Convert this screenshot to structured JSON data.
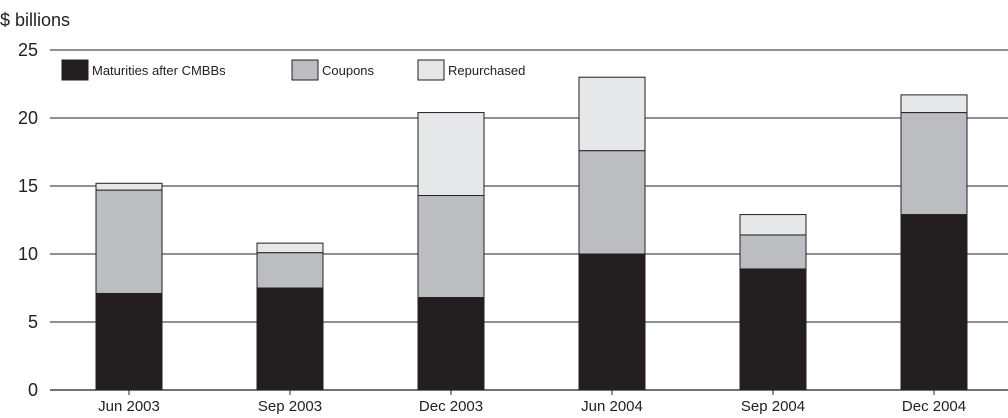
{
  "chart_data": {
    "type": "bar",
    "stacked": true,
    "ylabel": "$ billions",
    "ylim": [
      0,
      25
    ],
    "yticks": [
      0,
      5,
      10,
      15,
      20,
      25
    ],
    "grid": true,
    "legend_position": "top-left",
    "categories": [
      "Jun 2003",
      "Sep 2003",
      "Dec 2003",
      "Jun 2004",
      "Sep 2004",
      "Dec 2004"
    ],
    "series": [
      {
        "name": "Maturities after CMBBs",
        "color": "#231f20",
        "values": [
          7.1,
          7.5,
          6.8,
          10.0,
          8.9,
          12.9
        ]
      },
      {
        "name": "Coupons",
        "color": "#bcbdc0",
        "values": [
          7.6,
          2.6,
          7.5,
          7.6,
          2.5,
          7.5
        ]
      },
      {
        "name": "Repurchased",
        "color": "#e6e7e8",
        "values": [
          0.5,
          0.7,
          6.1,
          5.4,
          1.5,
          1.3
        ]
      }
    ]
  }
}
